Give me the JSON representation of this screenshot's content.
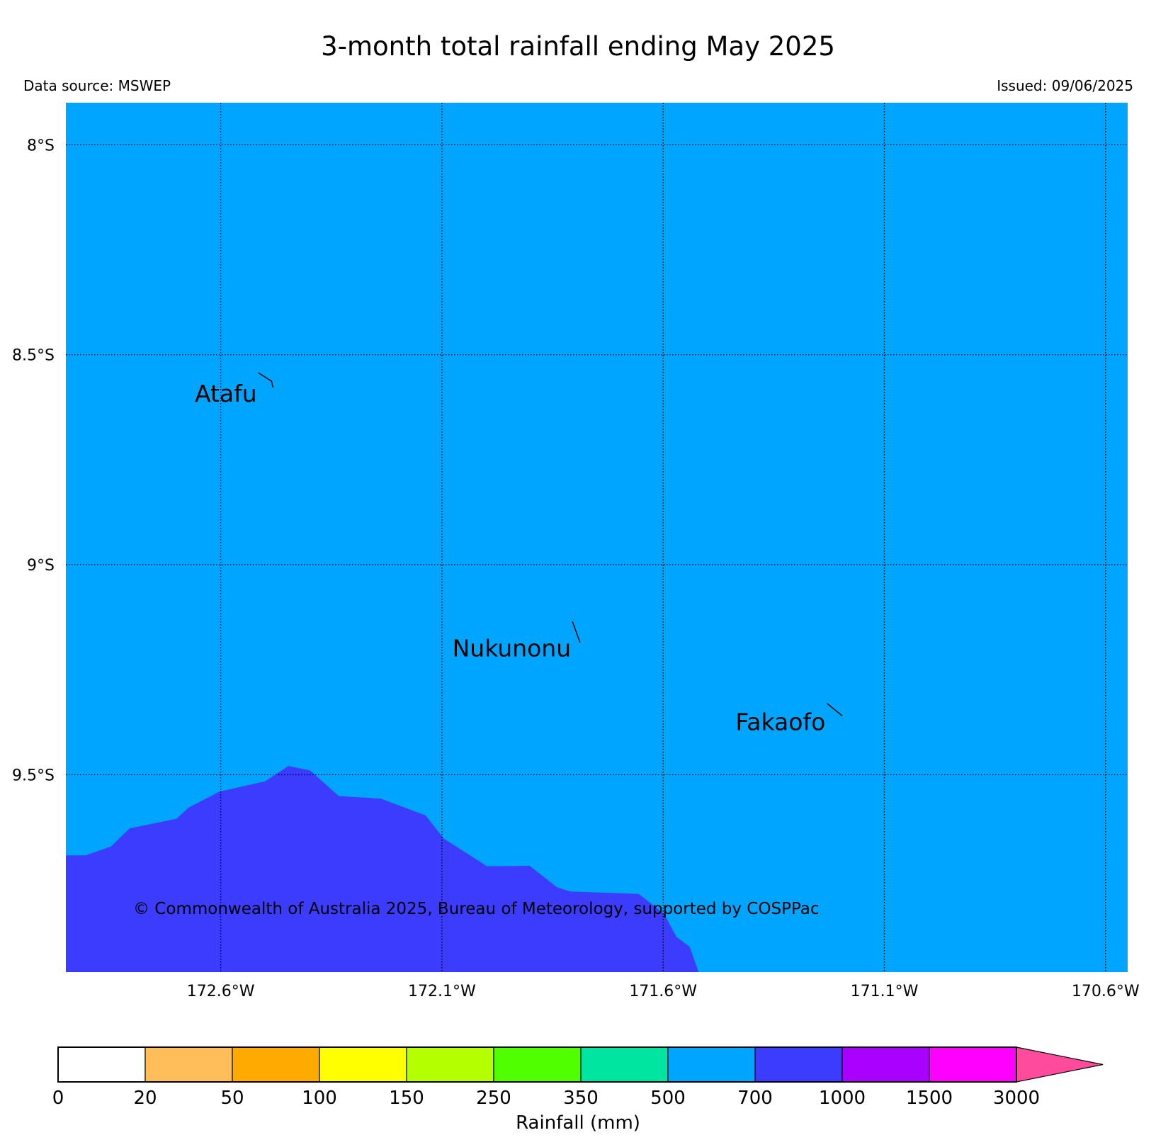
{
  "title": "3-month total rainfall ending May 2025",
  "data_source": "Data source: MSWEP",
  "issued": "Issued: 09/06/2025",
  "copyright": "© Commonwealth of Australia 2025, Bureau of Meteorology, supported by COSPPac",
  "colors": {
    "background_fill": "#00a5ff",
    "rain_700_1000": "#3c3cff",
    "copyright_text": "#2b3a8f"
  },
  "map": {
    "lon_range": [
      -172.95,
      -170.55
    ],
    "lat_range": [
      -9.97,
      -7.9
    ],
    "background_class": "500-700",
    "lat_ticks": [
      {
        "value": -8.0,
        "label": "8°S"
      },
      {
        "value": -8.5,
        "label": "8.5°S"
      },
      {
        "value": -9.0,
        "label": "9°S"
      },
      {
        "value": -9.5,
        "label": "9.5°S"
      }
    ],
    "lon_ticks": [
      {
        "value": -172.6,
        "label": "172.6°W"
      },
      {
        "value": -172.1,
        "label": "172.1°W"
      },
      {
        "value": -171.6,
        "label": "171.6°W"
      },
      {
        "value": -171.1,
        "label": "171.1°W"
      },
      {
        "value": -170.6,
        "label": "170.6°W"
      }
    ],
    "rain_region": {
      "class": "700-1000",
      "boundary": [
        [
          -172.95,
          -9.692
        ],
        [
          -172.905,
          -9.692
        ],
        [
          -172.848,
          -9.671
        ],
        [
          -172.806,
          -9.628
        ],
        [
          -172.7,
          -9.605
        ],
        [
          -172.672,
          -9.578
        ],
        [
          -172.602,
          -9.54
        ],
        [
          -172.5,
          -9.516
        ],
        [
          -172.445,
          -9.478
        ],
        [
          -172.448,
          -9.479
        ],
        [
          -172.398,
          -9.49
        ],
        [
          -172.363,
          -9.523
        ],
        [
          -172.333,
          -9.551
        ],
        [
          -172.238,
          -9.557
        ],
        [
          -172.137,
          -9.597
        ],
        [
          -172.096,
          -9.652
        ],
        [
          -171.998,
          -9.718
        ],
        [
          -171.902,
          -9.717
        ],
        [
          -171.84,
          -9.768
        ],
        [
          -171.81,
          -9.778
        ],
        [
          -171.655,
          -9.784
        ],
        [
          -171.598,
          -9.831
        ],
        [
          -171.57,
          -9.886
        ],
        [
          -171.54,
          -9.91
        ],
        [
          -171.52,
          -9.97
        ],
        [
          -172.95,
          -9.97
        ]
      ]
    },
    "places": [
      {
        "name": "Atafu",
        "coast": [
          [
            -172.515,
            -8.543
          ],
          [
            -172.485,
            -8.563
          ],
          [
            -172.482,
            -8.578
          ]
        ]
      },
      {
        "name": "Nukunonu",
        "coast": [
          [
            -171.805,
            -9.135
          ],
          [
            -171.788,
            -9.185
          ]
        ]
      },
      {
        "name": "Fakaofo",
        "coast": [
          [
            -171.23,
            -9.33
          ],
          [
            -171.195,
            -9.36
          ]
        ]
      }
    ]
  },
  "legend": {
    "label": "Rainfall (mm)",
    "bins": [
      {
        "from": "0",
        "to": "20",
        "color": "#ffffff"
      },
      {
        "from": "20",
        "to": "50",
        "color": "#ffbe5a"
      },
      {
        "from": "50",
        "to": "100",
        "color": "#ffaa00"
      },
      {
        "from": "100",
        "to": "150",
        "color": "#ffff00"
      },
      {
        "from": "150",
        "to": "250",
        "color": "#b4ff00"
      },
      {
        "from": "250",
        "to": "350",
        "color": "#50ff00"
      },
      {
        "from": "350",
        "to": "500",
        "color": "#00e6a0"
      },
      {
        "from": "500",
        "to": "700",
        "color": "#00a5ff"
      },
      {
        "from": "700",
        "to": "1000",
        "color": "#3c3cff"
      },
      {
        "from": "1000",
        "to": "1500",
        "color": "#aa00ff"
      },
      {
        "from": "1500",
        "to": "3000",
        "color": "#ff00ff"
      }
    ],
    "tick_labels": [
      "0",
      "20",
      "50",
      "100",
      "150",
      "250",
      "350",
      "500",
      "700",
      "1000",
      "1500",
      "3000"
    ],
    "overflow_color": "#ff4b9b"
  }
}
